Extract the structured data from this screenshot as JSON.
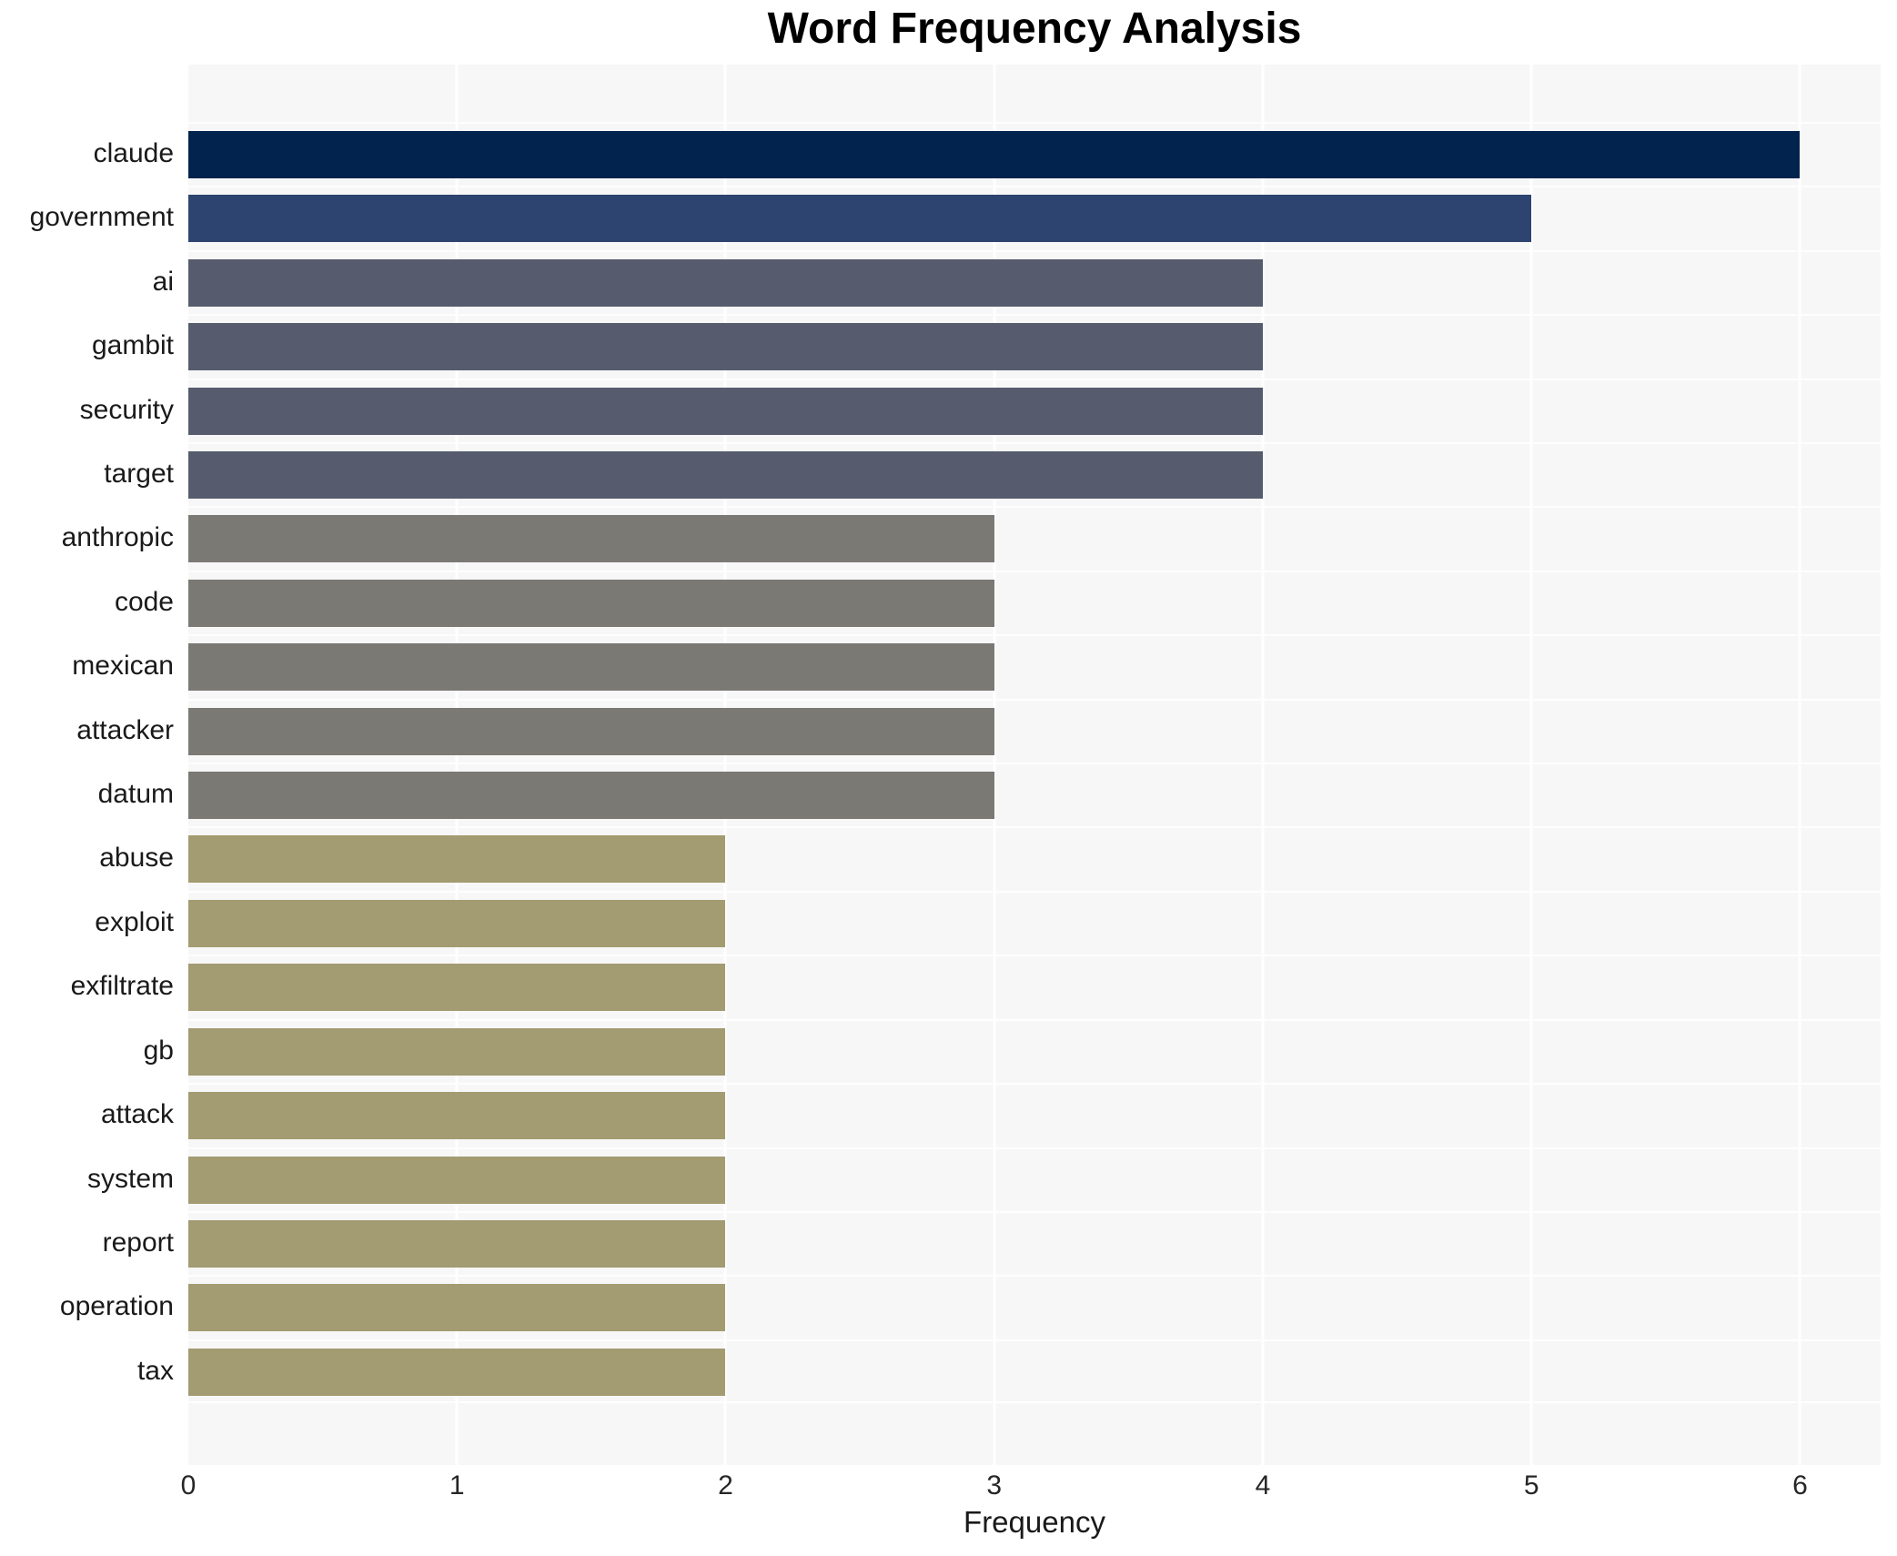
{
  "chart_data": {
    "type": "bar",
    "orientation": "horizontal",
    "title": "Word Frequency Analysis",
    "xlabel": "Frequency",
    "ylabel": "",
    "categories": [
      "claude",
      "government",
      "ai",
      "gambit",
      "security",
      "target",
      "anthropic",
      "code",
      "mexican",
      "attacker",
      "datum",
      "abuse",
      "exploit",
      "exfiltrate",
      "gb",
      "attack",
      "system",
      "report",
      "operation",
      "tax"
    ],
    "values": [
      6,
      5,
      4,
      4,
      4,
      4,
      3,
      3,
      3,
      3,
      3,
      2,
      2,
      2,
      2,
      2,
      2,
      2,
      2,
      2
    ],
    "bar_colors": [
      "#02234e",
      "#2d4370",
      "#565c6e",
      "#565c6e",
      "#565c6e",
      "#565c6e",
      "#7a7974",
      "#7a7974",
      "#7a7974",
      "#7a7974",
      "#7a7974",
      "#a39b71",
      "#a39b71",
      "#a39b71",
      "#a39b71",
      "#a39b71",
      "#a39b71",
      "#a39b71",
      "#a39b71",
      "#a39b71"
    ],
    "xlim": [
      0,
      6.3
    ],
    "xticks": [
      0,
      1,
      2,
      3,
      4,
      5,
      6
    ],
    "grid": "on",
    "legend": "none",
    "colors": {
      "figure_background": "#ffffff",
      "plot_background": "#f7f7f7",
      "gridline": "#ffffff",
      "label_text": "#1a1a1a",
      "tick_text": "#262626",
      "title_text": "#000000"
    }
  }
}
